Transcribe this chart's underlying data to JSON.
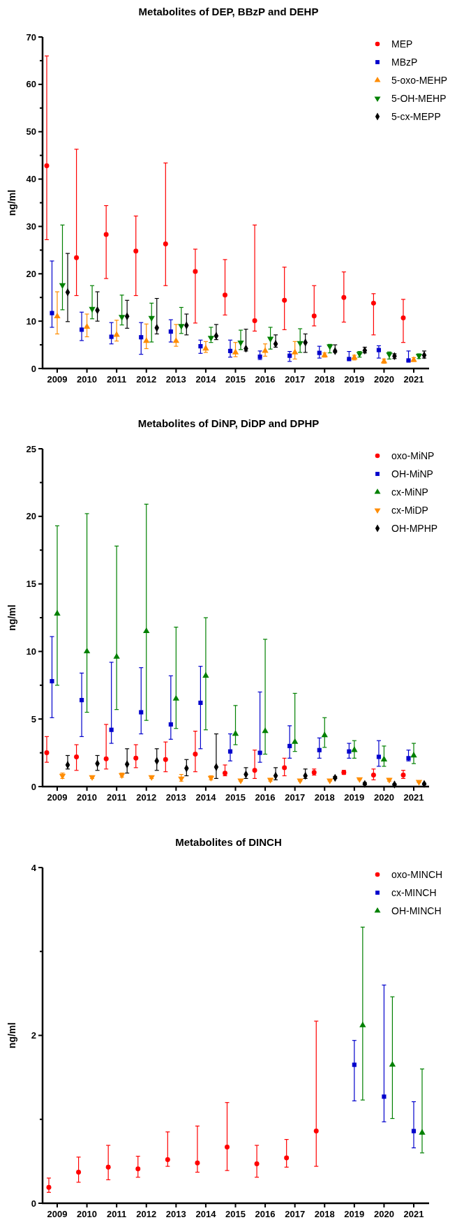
{
  "chart_data": [
    {
      "type": "scatter",
      "title": "Metabolites of DEP, BBzP and DEHP",
      "ylabel": "ng/ml",
      "legend": "top right",
      "categories": [
        "2009",
        "2010",
        "2011",
        "2012",
        "2013",
        "2014",
        "2015",
        "2016",
        "2017",
        "2018",
        "2019",
        "2020",
        "2021"
      ],
      "ylim": [
        0,
        70
      ],
      "yticks": [
        0,
        {
          "value": 5,
          "label": null
        },
        10,
        {
          "value": 15,
          "label": null
        },
        20,
        {
          "value": 25,
          "label": null
        },
        30,
        {
          "value": 35,
          "label": null
        },
        40,
        {
          "value": 45,
          "label": null
        },
        50,
        {
          "value": 55,
          "label": null
        },
        60,
        {
          "value": 65,
          "label": null
        },
        70
      ],
      "series": [
        {
          "name": "MEP",
          "color": "#ff0000",
          "marker": "circle",
          "values": [
            42.8,
            23.4,
            28.3,
            24.8,
            26.3,
            20.5,
            15.5,
            10.1,
            14.4,
            11.1,
            15.0,
            13.8,
            10.7
          ],
          "errors": [
            [
              27.2,
              66
            ],
            [
              15.4,
              46.3
            ],
            [
              19.0,
              34.4
            ],
            [
              15.4,
              32.2
            ],
            [
              17.5,
              43.4
            ],
            [
              9.6,
              25.2
            ],
            [
              11.3,
              23.0
            ],
            [
              7.9,
              30.3
            ],
            [
              8.2,
              21.4
            ],
            [
              9.0,
              17.5
            ],
            [
              9.8,
              20.4
            ],
            [
              7.1,
              15.8
            ],
            [
              5.5,
              14.6
            ]
          ]
        },
        {
          "name": "MBzP",
          "color": "#0000cc",
          "marker": "square",
          "values": [
            11.7,
            8.2,
            6.7,
            6.6,
            7.8,
            4.7,
            3.7,
            2.5,
            2.7,
            3.3,
            2.0,
            3.9,
            1.7
          ],
          "errors": [
            [
              8.7,
              22.7
            ],
            [
              5.9,
              11.9
            ],
            [
              5.2,
              9.7
            ],
            [
              3.0,
              9.7
            ],
            [
              5.6,
              10.3
            ],
            [
              3.2,
              6.0
            ],
            [
              2.4,
              6.0
            ],
            [
              1.9,
              3.7
            ],
            [
              1.5,
              3.6
            ],
            [
              2.2,
              4.7
            ],
            [
              1.9,
              3.6
            ],
            [
              2.2,
              4.8
            ],
            [
              1.6,
              3.7
            ]
          ]
        },
        {
          "name": "5-oxo-MEHP",
          "color": "#ff8c00",
          "marker": "triangle",
          "values": [
            11.0,
            8.8,
            7.1,
            5.8,
            5.8,
            4.2,
            3.4,
            3.7,
            3.4,
            2.8,
            2.3,
            1.5,
            1.8
          ],
          "errors": [
            [
              7.3,
              16.2
            ],
            [
              6.7,
              11.5
            ],
            [
              5.8,
              10.2
            ],
            [
              4.2,
              9.4
            ],
            [
              4.7,
              9.3
            ],
            [
              3.4,
              5.7
            ],
            [
              2.5,
              5.5
            ],
            [
              2.6,
              5.2
            ],
            [
              2.0,
              5.7
            ],
            [
              2.4,
              3.3
            ],
            [
              1.8,
              2.8
            ],
            [
              1.1,
              2.0
            ],
            [
              1.5,
              2.3
            ]
          ]
        },
        {
          "name": "5-OH-MEHP",
          "color": "#008000",
          "marker": "triangle-down",
          "values": [
            17.6,
            12.6,
            10.9,
            10.7,
            9.0,
            6.5,
            5.5,
            6.3,
            5.4,
            4.7,
            3.1,
            3.0,
            2.7
          ],
          "errors": [
            [
              12.4,
              30.3
            ],
            [
              10.5,
              17.5
            ],
            [
              9.2,
              15.5
            ],
            [
              5.6,
              13.8
            ],
            [
              7.4,
              12.9
            ],
            [
              5.5,
              8.7
            ],
            [
              4.0,
              8.1
            ],
            [
              4.1,
              8.7
            ],
            [
              3.4,
              8.4
            ],
            [
              3.3,
              5.1
            ],
            [
              2.4,
              3.6
            ],
            [
              2.0,
              3.5
            ],
            [
              2.1,
              3.1
            ]
          ]
        },
        {
          "name": "5-cx-MEPP",
          "color": "#000000",
          "marker": "diamond",
          "values": [
            16.1,
            12.3,
            11.0,
            8.6,
            9.1,
            6.9,
            4.2,
            5.2,
            5.5,
            3.7,
            3.8,
            2.6,
            2.8
          ],
          "errors": [
            [
              9.9,
              24.3
            ],
            [
              10.0,
              16.2
            ],
            [
              8.5,
              14.4
            ],
            [
              7.3,
              14.8
            ],
            [
              7.1,
              11.5
            ],
            [
              6.1,
              9.3
            ],
            [
              3.7,
              8.3
            ],
            [
              4.5,
              7.1
            ],
            [
              3.4,
              7.3
            ],
            [
              3.4,
              5.0
            ],
            [
              3.3,
              4.5
            ],
            [
              2.1,
              3.1
            ],
            [
              2.2,
              3.7
            ]
          ]
        }
      ]
    },
    {
      "type": "scatter",
      "title": "Metabolites of DiNP, DiDP and DPHP",
      "ylabel": "ng/ml",
      "legend": "top right",
      "categories": [
        "2009",
        "2010",
        "2011",
        "2012",
        "2013",
        "2014",
        "2015",
        "2016",
        "2017",
        "2018",
        "2019",
        "2020",
        "2021"
      ],
      "ylim": [
        0,
        25
      ],
      "yticks": [
        0,
        {
          "value": 2.5,
          "label": null
        },
        5,
        {
          "value": 7.5,
          "label": null
        },
        10,
        {
          "value": 12.5,
          "label": null
        },
        15,
        {
          "value": 17.5,
          "label": null
        },
        20,
        {
          "value": 22.5,
          "label": null
        },
        25
      ],
      "series": [
        {
          "name": "oxo-MiNP",
          "color": "#ff0000",
          "marker": "circle",
          "values": [
            2.5,
            2.2,
            2.05,
            2.1,
            2.0,
            2.4,
            1.0,
            1.2,
            1.4,
            1.05,
            1.05,
            0.85,
            0.85
          ],
          "errors": [
            [
              1.8,
              3.7
            ],
            [
              1.2,
              3.1
            ],
            [
              1.3,
              4.6
            ],
            [
              1.4,
              3.1
            ],
            [
              1.1,
              3.3
            ],
            [
              1.1,
              4.1
            ],
            [
              0.8,
              1.6
            ],
            [
              0.6,
              2.7
            ],
            [
              0.8,
              2.1
            ],
            [
              0.85,
              1.3
            ],
            [
              0.9,
              1.2
            ],
            [
              0.5,
              1.3
            ],
            [
              0.6,
              1.2
            ]
          ]
        },
        {
          "name": "OH-MiNP",
          "color": "#0000cc",
          "marker": "square",
          "values": [
            7.8,
            6.4,
            4.2,
            5.5,
            4.6,
            6.2,
            2.6,
            2.5,
            3.0,
            2.7,
            2.6,
            2.2,
            2.1
          ],
          "errors": [
            [
              5.1,
              11.1
            ],
            [
              3.7,
              8.4
            ],
            [
              3.2,
              9.2
            ],
            [
              3.9,
              8.8
            ],
            [
              3.5,
              8.2
            ],
            [
              2.8,
              8.9
            ],
            [
              1.9,
              3.9
            ],
            [
              1.8,
              7.0
            ],
            [
              2.1,
              4.5
            ],
            [
              2.1,
              3.6
            ],
            [
              2.1,
              3.2
            ],
            [
              1.5,
              3.4
            ],
            [
              1.9,
              2.7
            ]
          ]
        },
        {
          "name": "cx-MiNP",
          "color": "#008000",
          "marker": "triangle",
          "values": [
            12.8,
            10.0,
            9.6,
            11.5,
            6.5,
            8.2,
            3.9,
            4.1,
            3.3,
            3.8,
            2.7,
            2.0,
            2.3
          ],
          "errors": [
            [
              7.5,
              19.3
            ],
            [
              5.5,
              20.2
            ],
            [
              5.7,
              17.8
            ],
            [
              4.9,
              20.9
            ],
            [
              4.3,
              11.8
            ],
            [
              4.2,
              12.5
            ],
            [
              3.1,
              6.0
            ],
            [
              2.4,
              10.9
            ],
            [
              2.6,
              6.9
            ],
            [
              2.9,
              5.1
            ],
            [
              2.1,
              3.4
            ],
            [
              1.5,
              3.0
            ],
            [
              1.7,
              3.2
            ]
          ]
        },
        {
          "name": "cx-MiDP",
          "color": "#ff8c00",
          "marker": "triangle-down",
          "values": [
            0.8,
            0.7,
            0.85,
            0.7,
            0.6,
            0.65,
            0.45,
            0.5,
            0.45,
            0.45,
            0.55,
            0.5,
            0.35
          ],
          "errors": [
            [
              0.6,
              1.0
            ],
            [
              0.6,
              0.8
            ],
            [
              0.7,
              1.0
            ],
            [
              0.6,
              0.8
            ],
            [
              0.4,
              0.9
            ],
            [
              0.5,
              0.8
            ],
            [
              0.4,
              0.5
            ],
            [
              0.4,
              0.6
            ],
            [
              0.4,
              0.5
            ],
            [
              0.4,
              0.5
            ],
            [
              0.5,
              0.6
            ],
            [
              0.4,
              0.6
            ],
            [
              0.3,
              0.4
            ]
          ]
        },
        {
          "name": "OH-MPHP",
          "color": "#000000",
          "marker": "diamond",
          "values": [
            1.6,
            1.7,
            1.65,
            1.9,
            1.35,
            1.45,
            0.9,
            0.8,
            0.8,
            0.65,
            0.2,
            0.15,
            0.2
          ],
          "errors": [
            [
              1.3,
              2.3
            ],
            [
              1.2,
              2.3
            ],
            [
              1.0,
              2.8
            ],
            [
              1.2,
              2.8
            ],
            [
              0.8,
              2.0
            ],
            [
              0.6,
              3.9
            ],
            [
              0.6,
              1.4
            ],
            [
              0.5,
              1.4
            ],
            [
              0.6,
              1.3
            ],
            [
              0.6,
              0.75
            ],
            [
              0.15,
              0.3
            ],
            [
              0.1,
              0.2
            ],
            [
              0.15,
              0.25
            ]
          ]
        }
      ]
    },
    {
      "type": "scatter",
      "title": "Metabolites of DINCH",
      "ylabel": "ng/ml",
      "legend": "top right",
      "categories": [
        "2009",
        "2010",
        "2011",
        "2012",
        "2013",
        "2014",
        "2015",
        "2016",
        "2017",
        "2018",
        "2019",
        "2020",
        "2021"
      ],
      "ylim": [
        0,
        4
      ],
      "yticks": [
        0,
        {
          "value": 1,
          "label": null
        },
        2,
        {
          "value": 3,
          "label": null
        },
        4
      ],
      "series": [
        {
          "name": "oxo-MINCH",
          "color": "#ff0000",
          "marker": "circle",
          "values": [
            0.19,
            0.37,
            0.43,
            0.41,
            0.52,
            0.48,
            0.67,
            0.47,
            0.54,
            0.86,
            null,
            null,
            null
          ],
          "errors": [
            [
              0.13,
              0.3
            ],
            [
              0.25,
              0.55
            ],
            [
              0.28,
              0.69
            ],
            [
              0.31,
              0.56
            ],
            [
              0.44,
              0.85
            ],
            [
              0.37,
              0.92
            ],
            [
              0.39,
              1.2
            ],
            [
              0.31,
              0.69
            ],
            [
              0.43,
              0.76
            ],
            [
              0.44,
              2.17
            ],
            null,
            null,
            null
          ]
        },
        {
          "name": "cx-MINCH",
          "color": "#0000cc",
          "marker": "square",
          "values": [
            null,
            null,
            null,
            null,
            null,
            null,
            null,
            null,
            null,
            null,
            1.65,
            1.27,
            0.86
          ],
          "errors": [
            null,
            null,
            null,
            null,
            null,
            null,
            null,
            null,
            null,
            null,
            [
              1.22,
              1.94
            ],
            [
              0.97,
              2.6
            ],
            [
              0.66,
              1.21
            ]
          ]
        },
        {
          "name": "OH-MINCH",
          "color": "#008000",
          "marker": "triangle",
          "values": [
            null,
            null,
            null,
            null,
            null,
            null,
            null,
            null,
            null,
            null,
            2.12,
            1.65,
            0.84
          ],
          "errors": [
            null,
            null,
            null,
            null,
            null,
            null,
            null,
            null,
            null,
            null,
            [
              1.23,
              3.29
            ],
            [
              1.01,
              2.46
            ],
            [
              0.6,
              1.6
            ]
          ]
        }
      ]
    }
  ]
}
